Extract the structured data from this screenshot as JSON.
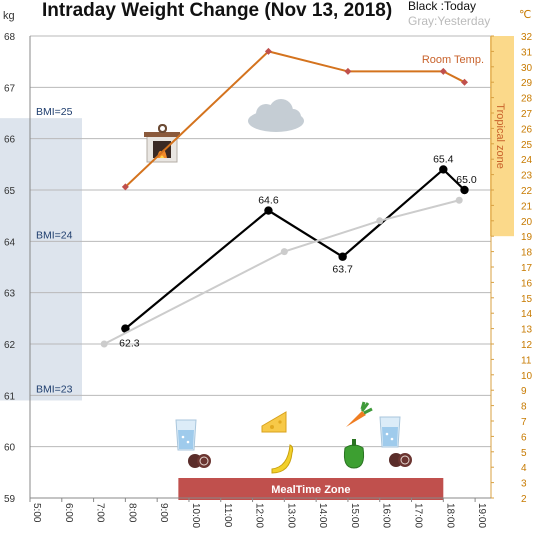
{
  "chart_data": {
    "type": "line",
    "title": "Intraday Weight Change (Nov 13, 2018)",
    "legend": {
      "today": "Black :Today",
      "yesterday": "Gray:Yesterday"
    },
    "y_unit": "kg",
    "y2_unit": "℃",
    "ylim": [
      59,
      68
    ],
    "y2lim": [
      2,
      32
    ],
    "xlim": [
      "5:00",
      "19:30"
    ],
    "x_ticks": [
      "5:00",
      "6:00",
      "7:00",
      "8:00",
      "9:00",
      "10:00",
      "11:00",
      "12:00",
      "13:00",
      "14:00",
      "15:00",
      "16:00",
      "17:00",
      "18:00",
      "19:00"
    ],
    "y_ticks": [
      59,
      60,
      61,
      62,
      63,
      64,
      65,
      66,
      67,
      68
    ],
    "y2_ticks": [
      2,
      3,
      4,
      5,
      6,
      7,
      8,
      9,
      10,
      11,
      12,
      13,
      14,
      15,
      16,
      17,
      18,
      19,
      20,
      21,
      22,
      23,
      24,
      25,
      26,
      27,
      28,
      29,
      30,
      31,
      32
    ],
    "grid": true,
    "series": [
      {
        "name": "Today",
        "axis": "left",
        "color": "#000000",
        "x": [
          "8:00",
          "12:30",
          "14:50",
          "18:00",
          "18:40"
        ],
        "y": [
          62.3,
          64.6,
          63.7,
          65.4,
          65.0
        ],
        "labels": [
          "62.3",
          "64.6",
          "63.7",
          "65.4",
          "65.0"
        ]
      },
      {
        "name": "Yesterday",
        "axis": "left",
        "color": "#cccccc",
        "x": [
          "7:20",
          "13:00",
          "16:00",
          "18:30"
        ],
        "y": [
          62.0,
          63.8,
          64.4,
          64.8
        ]
      },
      {
        "name": "Room Temp.",
        "axis": "right",
        "color": "#d4731e",
        "x": [
          "8:00",
          "12:30",
          "15:00",
          "18:00",
          "18:40"
        ],
        "y": [
          22.2,
          31.0,
          29.7,
          29.7,
          29.0
        ]
      }
    ],
    "bands": {
      "bmi": {
        "labels": [
          "BMI=25",
          "BMI=24",
          "BMI=23"
        ],
        "values": [
          66.4,
          64.0,
          61.0
        ],
        "color": "#dde4ed"
      },
      "tropical": {
        "label": "Tropical zone",
        "from": 19,
        "to": 32,
        "color": "#fbd98a"
      },
      "meal": {
        "label": "MealTime Zone",
        "from": "9:40",
        "to": "18:00",
        "color": "#c0504d"
      }
    },
    "icons": [
      "fireplace-icon",
      "cloud-icon",
      "water-glass-icon",
      "cookies-icon",
      "cheese-icon",
      "banana-icon",
      "carrot-icon",
      "pepper-icon",
      "water-glass-icon",
      "cookies-icon"
    ]
  }
}
